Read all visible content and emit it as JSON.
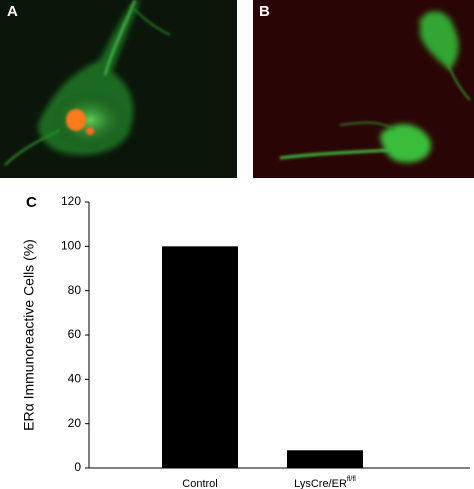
{
  "panel_labels": [
    "A",
    "B",
    "C"
  ],
  "chart_data": {
    "type": "bar",
    "ylabel": "ERα Immunoreactive Cells (%)",
    "categories": [
      "Control",
      "LysCre/ER"
    ],
    "category_superscripts": [
      null,
      "fl/fl"
    ],
    "values": [
      100,
      8
    ],
    "color": "#000000",
    "ylim": [
      0,
      120
    ],
    "yticks": [
      0,
      20,
      40,
      60,
      80,
      100,
      120
    ],
    "grid": false
  }
}
